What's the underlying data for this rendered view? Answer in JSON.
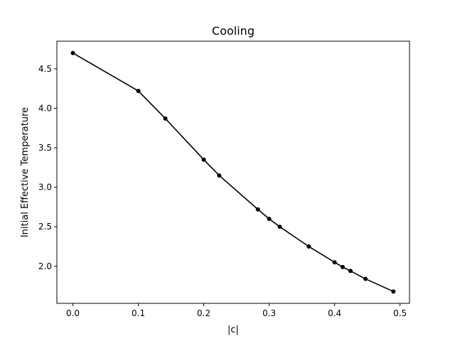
{
  "chart_data": {
    "type": "line",
    "title": "Cooling",
    "xlabel": "|c|",
    "ylabel": "Initial Effective Temperature",
    "xlim": [
      -0.0245,
      0.5145
    ],
    "ylim": [
      1.53,
      4.85
    ],
    "xticks": [
      0.0,
      0.1,
      0.2,
      0.3,
      0.4,
      0.5
    ],
    "xtick_labels": [
      "0.0",
      "0.1",
      "0.2",
      "0.3",
      "0.4",
      "0.5"
    ],
    "yticks": [
      2.0,
      2.5,
      3.0,
      3.5,
      4.0,
      4.5
    ],
    "ytick_labels": [
      "2.0",
      "2.5",
      "3.0",
      "3.5",
      "4.0",
      "4.5"
    ],
    "grid": false,
    "color": "#000000",
    "marker": "circle",
    "series": [
      {
        "x": [
          0.0,
          0.1,
          0.1414,
          0.2,
          0.2236,
          0.2828,
          0.3,
          0.3162,
          0.3606,
          0.4,
          0.4123,
          0.4243,
          0.4472,
          0.4899
        ],
        "y": [
          4.7,
          4.22,
          3.87,
          3.35,
          3.15,
          2.72,
          2.6,
          2.5,
          2.25,
          2.05,
          1.99,
          1.94,
          1.84,
          1.68
        ]
      }
    ]
  }
}
